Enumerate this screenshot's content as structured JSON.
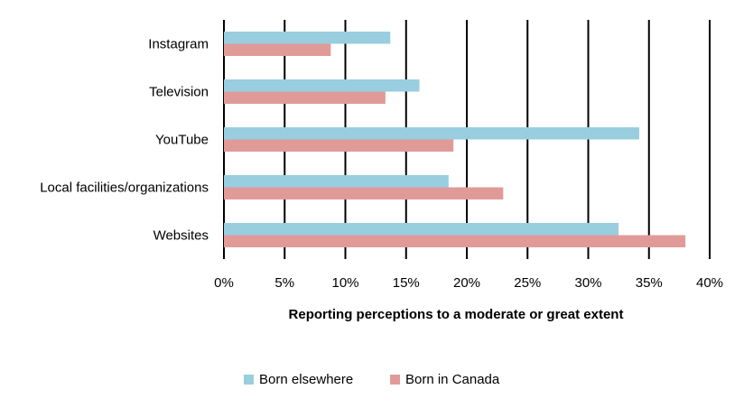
{
  "chart_data": {
    "type": "bar",
    "orientation": "horizontal",
    "categories": [
      "Instagram",
      "Television",
      "YouTube",
      "Local facilities/organizations",
      "Websites"
    ],
    "series": [
      {
        "name": "Born elsewhere",
        "color": "#99cedf",
        "values": [
          13.7,
          16.1,
          34.2,
          18.5,
          32.5
        ]
      },
      {
        "name": "Born in Canada",
        "color": "#e09b99",
        "values": [
          8.8,
          13.3,
          18.9,
          23.0,
          38.0
        ]
      }
    ],
    "xlabel": "Reporting perceptions to a moderate or great extent",
    "ylabel": "",
    "xlim": [
      0,
      40
    ],
    "xticks": [
      0,
      5,
      10,
      15,
      20,
      25,
      30,
      35,
      40
    ],
    "xtick_labels": [
      "0%",
      "5%",
      "10%",
      "15%",
      "20%",
      "25%",
      "30%",
      "35%",
      "40%"
    ],
    "grid": "vertical",
    "legend_position": "bottom"
  }
}
